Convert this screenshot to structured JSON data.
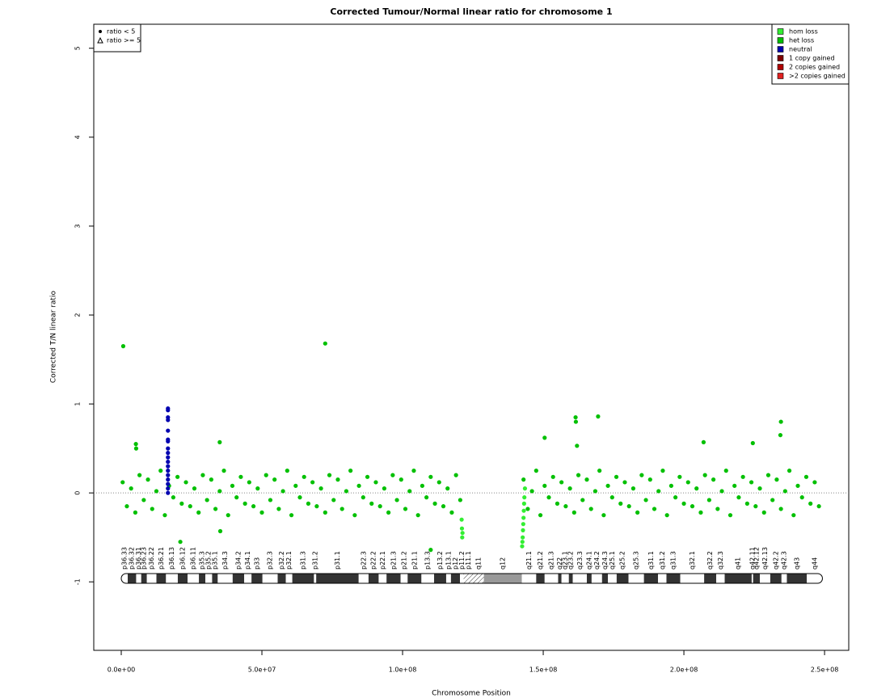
{
  "chart_data": {
    "type": "scatter",
    "title": "Corrected Tumour/Normal linear ratio for chromosome  1",
    "x_label": "Chromosome Position",
    "y_label": "Corrected T/N linear ratio",
    "xlim": [
      -9770000,
      258600000
    ],
    "ylim": [
      -1.77,
      5.27
    ],
    "xticks": [
      {
        "value": 0,
        "label": "0.0e+00"
      },
      {
        "value": 50000000.0,
        "label": "5.0e+07"
      },
      {
        "value": 100000000.0,
        "label": "1.0e+08"
      },
      {
        "value": 150000000.0,
        "label": "1.5e+08"
      },
      {
        "value": 200000000.0,
        "label": "2.0e+08"
      },
      {
        "value": 250000000.0,
        "label": "2.5e+08"
      }
    ],
    "yticks": [
      -1,
      0,
      1,
      2,
      3,
      4,
      5
    ],
    "hline": 0,
    "legend": "topright",
    "shape_legend": [
      "ratio < 5",
      "ratio >= 5"
    ],
    "series": [
      {
        "name": "hom loss",
        "color": "#33ee33",
        "x": [
          121000000.0,
          121100000.0,
          121200000.0,
          121300000.0,
          142500000.0,
          142600000.0,
          142700000.0,
          142800000.0,
          142900000.0,
          143000000.0,
          143100000.0,
          143200000.0,
          143300000.0,
          143500000.0
        ],
        "y": [
          -0.3,
          -0.4,
          -0.5,
          -0.45,
          -0.6,
          -0.55,
          -0.5,
          -0.42,
          -0.35,
          -0.28,
          -0.2,
          -0.12,
          -0.05,
          0.05
        ]
      },
      {
        "name": "het loss",
        "color": "#00c000",
        "x": [
          500000.0,
          2000000.0,
          3500000.0,
          5000000.0,
          6500000.0,
          8000000.0,
          9500000.0,
          11000000.0,
          12500000.0,
          14000000.0,
          15500000.0,
          17000000.0,
          18500000.0,
          20000000.0,
          21500000.0,
          23000000.0,
          24500000.0,
          26000000.0,
          27500000.0,
          29000000.0,
          30500000.0,
          32000000.0,
          33500000.0,
          35000000.0,
          36500000.0,
          38000000.0,
          39500000.0,
          41000000.0,
          42500000.0,
          44000000.0,
          45500000.0,
          47000000.0,
          48500000.0,
          50000000.0,
          51500000.0,
          53000000.0,
          54500000.0,
          56000000.0,
          57500000.0,
          59000000.0,
          60500000.0,
          62000000.0,
          63500000.0,
          65000000.0,
          66500000.0,
          68000000.0,
          69500000.0,
          71000000.0,
          72500000.0,
          74000000.0,
          75500000.0,
          77000000.0,
          78500000.0,
          80000000.0,
          81500000.0,
          83000000.0,
          84500000.0,
          86000000.0,
          87500000.0,
          89000000.0,
          90500000.0,
          92000000.0,
          93500000.0,
          95000000.0,
          96500000.0,
          98000000.0,
          99500000.0,
          101000000.0,
          102500000.0,
          104000000.0,
          105500000.0,
          107000000.0,
          108500000.0,
          110000000.0,
          111500000.0,
          113000000.0,
          114500000.0,
          116000000.0,
          117500000.0,
          119000000.0,
          120500000.0,
          143000000.0,
          144500000.0,
          146000000.0,
          147500000.0,
          149000000.0,
          150500000.0,
          152000000.0,
          153500000.0,
          155000000.0,
          156500000.0,
          158000000.0,
          159500000.0,
          161000000.0,
          162500000.0,
          164000000.0,
          165500000.0,
          167000000.0,
          168500000.0,
          170000000.0,
          171500000.0,
          173000000.0,
          174500000.0,
          176000000.0,
          177500000.0,
          179000000.0,
          180500000.0,
          182000000.0,
          183500000.0,
          185000000.0,
          186500000.0,
          188000000.0,
          189500000.0,
          191000000.0,
          192500000.0,
          194000000.0,
          195500000.0,
          197000000.0,
          198500000.0,
          200000000.0,
          201500000.0,
          203000000.0,
          204500000.0,
          206000000.0,
          207500000.0,
          209000000.0,
          210500000.0,
          212000000.0,
          213500000.0,
          215000000.0,
          216500000.0,
          218000000.0,
          219500000.0,
          221000000.0,
          222500000.0,
          224000000.0,
          225500000.0,
          227000000.0,
          228500000.0,
          230000000.0,
          231500000.0,
          233000000.0,
          234500000.0,
          236000000.0,
          237500000.0,
          239000000.0,
          240500000.0,
          242000000.0,
          243500000.0,
          245000000.0,
          246500000.0,
          248000000.0,
          700000.0,
          72500000.0,
          5200000.0,
          5300000.0,
          35000000.0,
          21000000.0,
          35200000.0,
          161500000.0,
          161600000.0,
          169500000.0,
          234500000.0,
          150500000.0,
          207000000.0,
          224500000.0,
          110000000.0,
          162000000.0,
          234300000.0
        ],
        "y": [
          0.12,
          -0.15,
          0.05,
          -0.22,
          0.2,
          -0.08,
          0.15,
          -0.18,
          0.02,
          0.25,
          -0.25,
          0.08,
          -0.05,
          0.18,
          -0.12,
          0.12,
          -0.15,
          0.05,
          -0.22,
          0.2,
          -0.08,
          0.15,
          -0.18,
          0.02,
          0.25,
          -0.25,
          0.08,
          -0.05,
          0.18,
          -0.12,
          0.12,
          -0.15,
          0.05,
          -0.22,
          0.2,
          -0.08,
          0.15,
          -0.18,
          0.02,
          0.25,
          -0.25,
          0.08,
          -0.05,
          0.18,
          -0.12,
          0.12,
          -0.15,
          0.05,
          -0.22,
          0.2,
          -0.08,
          0.15,
          -0.18,
          0.02,
          0.25,
          -0.25,
          0.08,
          -0.05,
          0.18,
          -0.12,
          0.12,
          -0.15,
          0.05,
          -0.22,
          0.2,
          -0.08,
          0.15,
          -0.18,
          0.02,
          0.25,
          -0.25,
          0.08,
          -0.05,
          0.18,
          -0.12,
          0.12,
          -0.15,
          0.05,
          -0.22,
          0.2,
          -0.08,
          0.15,
          -0.18,
          0.02,
          0.25,
          -0.25,
          0.08,
          -0.05,
          0.18,
          -0.12,
          0.12,
          -0.15,
          0.05,
          -0.22,
          0.2,
          -0.08,
          0.15,
          -0.18,
          0.02,
          0.25,
          -0.25,
          0.08,
          -0.05,
          0.18,
          -0.12,
          0.12,
          -0.15,
          0.05,
          -0.22,
          0.2,
          -0.08,
          0.15,
          -0.18,
          0.02,
          0.25,
          -0.25,
          0.08,
          -0.05,
          0.18,
          -0.12,
          0.12,
          -0.15,
          0.05,
          -0.22,
          0.2,
          -0.08,
          0.15,
          -0.18,
          0.02,
          0.25,
          -0.25,
          0.08,
          -0.05,
          0.18,
          -0.12,
          0.12,
          -0.15,
          0.05,
          -0.22,
          0.2,
          -0.08,
          0.15,
          -0.18,
          0.02,
          0.25,
          -0.25,
          0.08,
          -0.05,
          0.18,
          -0.12,
          0.12,
          -0.15,
          1.65,
          1.68,
          0.55,
          0.5,
          0.57,
          -0.55,
          -0.43,
          0.85,
          0.8,
          0.86,
          0.8,
          0.62,
          0.57,
          0.56,
          -0.64,
          0.53,
          0.65
        ]
      },
      {
        "name": "neutral",
        "color": "#0000b0",
        "x": [
          16600000.0,
          16600000.0,
          16600000.0,
          16600000.0,
          16600000.0,
          16600000.0,
          16600000.0,
          16600000.0,
          16600000.0,
          16600000.0,
          16600000.0,
          16600000.0,
          16600000.0,
          16600000.0,
          16600000.0,
          16600000.0,
          16600000.0,
          16600000.0
        ],
        "y": [
          0.95,
          0.93,
          0.85,
          0.82,
          0.7,
          0.6,
          0.58,
          0.5,
          0.45,
          0.4,
          0.35,
          0.3,
          0.25,
          0.2,
          0.15,
          0.1,
          0.05,
          0.0
        ]
      },
      {
        "name": "1 copy gained",
        "color": "#7f0000",
        "x": [],
        "y": []
      },
      {
        "name": "2 copies gained",
        "color": "#b00000",
        "x": [],
        "y": []
      },
      {
        "name": ">2 copies gained",
        "color": "#e02020",
        "x": [],
        "y": []
      }
    ],
    "bands": [
      {
        "name": "p36.33",
        "start": 0,
        "end": 2300000.0,
        "stain": "gneg"
      },
      {
        "name": "p36.32",
        "start": 2300000.0,
        "end": 5300000.0,
        "stain": "gpos"
      },
      {
        "name": "p36.31",
        "start": 5300000.0,
        "end": 7100000.0,
        "stain": "gneg"
      },
      {
        "name": "p36.23",
        "start": 7100000.0,
        "end": 9100000.0,
        "stain": "gpos"
      },
      {
        "name": "p36.22",
        "start": 9100000.0,
        "end": 12500000.0,
        "stain": "gneg"
      },
      {
        "name": "p36.21",
        "start": 12500000.0,
        "end": 15900000.0,
        "stain": "gpos"
      },
      {
        "name": "p36.13",
        "start": 15900000.0,
        "end": 20100000.0,
        "stain": "gneg"
      },
      {
        "name": "p36.12",
        "start": 20100000.0,
        "end": 23600000.0,
        "stain": "gpos"
      },
      {
        "name": "p36.11",
        "start": 23600000.0,
        "end": 27600000.0,
        "stain": "gneg"
      },
      {
        "name": "p35.3",
        "start": 27600000.0,
        "end": 29900000.0,
        "stain": "gpos"
      },
      {
        "name": "p35.2",
        "start": 29900000.0,
        "end": 32300000.0,
        "stain": "gneg"
      },
      {
        "name": "p35.1",
        "start": 32300000.0,
        "end": 34300000.0,
        "stain": "gpos"
      },
      {
        "name": "p34.3",
        "start": 34300000.0,
        "end": 39600000.0,
        "stain": "gneg"
      },
      {
        "name": "p34.2",
        "start": 39600000.0,
        "end": 43700000.0,
        "stain": "gpos"
      },
      {
        "name": "p34.1",
        "start": 43700000.0,
        "end": 46300000.0,
        "stain": "gneg"
      },
      {
        "name": "p33",
        "start": 46300000.0,
        "end": 50200000.0,
        "stain": "gpos"
      },
      {
        "name": "p32.3",
        "start": 50200000.0,
        "end": 55600000.0,
        "stain": "gneg"
      },
      {
        "name": "p32.2",
        "start": 55600000.0,
        "end": 58500000.0,
        "stain": "gpos"
      },
      {
        "name": "p32.1",
        "start": 58500000.0,
        "end": 60800000.0,
        "stain": "gneg"
      },
      {
        "name": "p31.3",
        "start": 60800000.0,
        "end": 68500000.0,
        "stain": "gpos"
      },
      {
        "name": "p31.2",
        "start": 68500000.0,
        "end": 69300000.0,
        "stain": "gneg"
      },
      {
        "name": "p31.1",
        "start": 69300000.0,
        "end": 84400000.0,
        "stain": "gpos"
      },
      {
        "name": "p22.3",
        "start": 84400000.0,
        "end": 87900000.0,
        "stain": "gneg"
      },
      {
        "name": "p22.2",
        "start": 87900000.0,
        "end": 91500000.0,
        "stain": "gpos"
      },
      {
        "name": "p22.1",
        "start": 91500000.0,
        "end": 94300000.0,
        "stain": "gneg"
      },
      {
        "name": "p21.3",
        "start": 94300000.0,
        "end": 99300000.0,
        "stain": "gpos"
      },
      {
        "name": "p21.2",
        "start": 99300000.0,
        "end": 101800000.0,
        "stain": "gneg"
      },
      {
        "name": "p21.1",
        "start": 101800000.0,
        "end": 106700000.0,
        "stain": "gpos"
      },
      {
        "name": "p13.3",
        "start": 106700000.0,
        "end": 111200000.0,
        "stain": "gneg"
      },
      {
        "name": "p13.2",
        "start": 111200000.0,
        "end": 115500000.0,
        "stain": "gpos"
      },
      {
        "name": "p13.1",
        "start": 115500000.0,
        "end": 117200000.0,
        "stain": "gneg"
      },
      {
        "name": "p12",
        "start": 117200000.0,
        "end": 120400000.0,
        "stain": "gpos"
      },
      {
        "name": "p11.2",
        "start": 120400000.0,
        "end": 121700000.0,
        "stain": "gneg"
      },
      {
        "name": "p11.1",
        "start": 121700000.0,
        "end": 125100000.0,
        "stain": "acen"
      },
      {
        "name": "q11",
        "start": 125100000.0,
        "end": 128900000.0,
        "stain": "acen"
      },
      {
        "name": "q12",
        "start": 128900000.0,
        "end": 142400000.0,
        "stain": "gvar"
      },
      {
        "name": "q21.1",
        "start": 142400000.0,
        "end": 147500000.0,
        "stain": "gneg"
      },
      {
        "name": "q21.2",
        "start": 147500000.0,
        "end": 150500000.0,
        "stain": "gpos"
      },
      {
        "name": "q21.3",
        "start": 150500000.0,
        "end": 155300000.0,
        "stain": "gneg"
      },
      {
        "name": "q22",
        "start": 155300000.0,
        "end": 156500000.0,
        "stain": "gpos"
      },
      {
        "name": "q23.1",
        "start": 156500000.0,
        "end": 159100000.0,
        "stain": "gneg"
      },
      {
        "name": "q23.2",
        "start": 159100000.0,
        "end": 160500000.0,
        "stain": "gpos"
      },
      {
        "name": "q23.3",
        "start": 160500000.0,
        "end": 165500000.0,
        "stain": "gneg"
      },
      {
        "name": "q24.1",
        "start": 165500000.0,
        "end": 167200000.0,
        "stain": "gpos"
      },
      {
        "name": "q24.2",
        "start": 167200000.0,
        "end": 170900000.0,
        "stain": "gneg"
      },
      {
        "name": "q24.3",
        "start": 170900000.0,
        "end": 173000000.0,
        "stain": "gpos"
      },
      {
        "name": "q25.1",
        "start": 173000000.0,
        "end": 176100000.0,
        "stain": "gneg"
      },
      {
        "name": "q25.2",
        "start": 176100000.0,
        "end": 180300000.0,
        "stain": "gpos"
      },
      {
        "name": "q25.3",
        "start": 180300000.0,
        "end": 185800000.0,
        "stain": "gneg"
      },
      {
        "name": "q31.1",
        "start": 185800000.0,
        "end": 190800000.0,
        "stain": "gpos"
      },
      {
        "name": "q31.2",
        "start": 190800000.0,
        "end": 193800000.0,
        "stain": "gneg"
      },
      {
        "name": "q31.3",
        "start": 193800000.0,
        "end": 198700000.0,
        "stain": "gpos"
      },
      {
        "name": "q32.1",
        "start": 198700000.0,
        "end": 207200000.0,
        "stain": "gneg"
      },
      {
        "name": "q32.2",
        "start": 207200000.0,
        "end": 211500000.0,
        "stain": "gpos"
      },
      {
        "name": "q32.3",
        "start": 211500000.0,
        "end": 214500000.0,
        "stain": "gneg"
      },
      {
        "name": "q41",
        "start": 214500000.0,
        "end": 224100000.0,
        "stain": "gpos"
      },
      {
        "name": "q42.11",
        "start": 224100000.0,
        "end": 224600000.0,
        "stain": "gneg"
      },
      {
        "name": "q42.12",
        "start": 224600000.0,
        "end": 227000000.0,
        "stain": "gpos"
      },
      {
        "name": "q42.13",
        "start": 227000000.0,
        "end": 230700000.0,
        "stain": "gneg"
      },
      {
        "name": "q42.2",
        "start": 230700000.0,
        "end": 234700000.0,
        "stain": "gpos"
      },
      {
        "name": "q42.3",
        "start": 234700000.0,
        "end": 236600000.0,
        "stain": "gneg"
      },
      {
        "name": "q43",
        "start": 236600000.0,
        "end": 243700000.0,
        "stain": "gpos"
      },
      {
        "name": "q44",
        "start": 243700000.0,
        "end": 249250000.0,
        "stain": "gneg"
      }
    ]
  }
}
